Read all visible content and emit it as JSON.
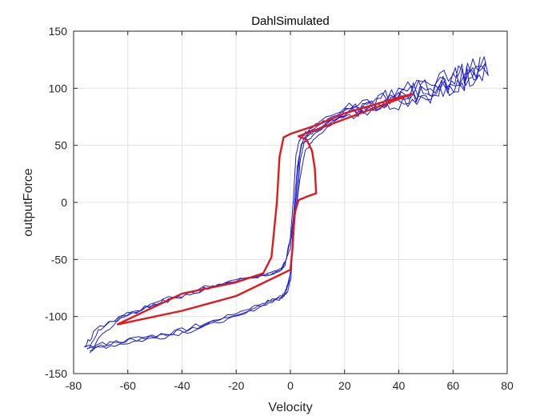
{
  "chart_data": {
    "type": "line",
    "title": "DahlSimulated",
    "xlabel": "Velocity",
    "ylabel": "outputForce",
    "xlim": [
      -80,
      80
    ],
    "ylim": [
      -150,
      150
    ],
    "xticks": [
      -80,
      -60,
      -40,
      -20,
      0,
      20,
      40,
      60,
      80
    ],
    "yticks": [
      -150,
      -100,
      -50,
      0,
      50,
      100,
      150
    ],
    "grid": true,
    "legend": "none",
    "colors": {
      "measured": "#1f1fd0",
      "simulated": "#e0191c"
    },
    "series": [
      {
        "color": "#1f1fd0",
        "noisy": true,
        "x": [
          -75,
          -70,
          -60,
          -50,
          -40,
          -30,
          -20,
          -10,
          -5,
          -3,
          -1.5,
          0,
          0.5,
          1,
          1.5,
          2,
          2.5,
          4,
          6,
          10,
          20,
          30,
          40,
          50,
          60,
          65,
          72,
          65,
          60,
          50,
          40,
          30,
          20,
          10,
          6,
          4,
          3,
          2,
          1.5,
          1,
          0,
          -2,
          -4,
          -6,
          -10,
          -20,
          -30,
          -40,
          -50,
          -60,
          -70,
          -75
        ],
        "y": [
          -128,
          -125,
          -121,
          -117,
          -112,
          -105,
          -97,
          -88,
          -84,
          -81,
          -76,
          -62,
          -45,
          -20,
          0,
          15,
          30,
          50,
          57,
          64,
          76,
          83,
          89,
          95,
          104,
          110,
          120,
          114,
          108,
          102,
          95,
          88,
          82,
          70,
          62,
          57,
          52,
          40,
          20,
          0,
          -30,
          -55,
          -60,
          -62,
          -64,
          -68,
          -74,
          -80,
          -88,
          -98,
          -110,
          -128
        ]
      },
      {
        "color": "#1f1fd0",
        "noisy": true,
        "x": [
          -74,
          -68,
          -58,
          -48,
          -38,
          -28,
          -18,
          -9,
          -4,
          -2,
          -0.5,
          0.5,
          1.2,
          2,
          3,
          3.5,
          5,
          8,
          15,
          25,
          35,
          45,
          55,
          63,
          70,
          62,
          52,
          42,
          32,
          22,
          12,
          7,
          5,
          4,
          3,
          2.5,
          1.5,
          0,
          -3,
          -5,
          -8,
          -15,
          -25,
          -35,
          -45,
          -55,
          -65,
          -74
        ],
        "y": [
          -130,
          -126,
          -122,
          -118,
          -113,
          -106,
          -99,
          -89,
          -85,
          -80,
          -70,
          -50,
          -25,
          -5,
          15,
          35,
          52,
          58,
          72,
          80,
          87,
          94,
          100,
          108,
          116,
          106,
          100,
          94,
          87,
          80,
          68,
          60,
          56,
          50,
          35,
          15,
          -10,
          -40,
          -58,
          -61,
          -63,
          -66,
          -72,
          -78,
          -86,
          -95,
          -105,
          -130
        ]
      },
      {
        "color": "#1f1fd0",
        "noisy": true,
        "x": [
          -76,
          -66,
          -56,
          -46,
          -36,
          -26,
          -16,
          -8,
          -3,
          -1,
          0.2,
          0.8,
          1.8,
          2.8,
          4,
          5.5,
          9,
          18,
          28,
          38,
          48,
          58,
          66,
          73,
          64,
          54,
          44,
          34,
          24,
          14,
          8,
          5.5,
          4.5,
          3.5,
          2.8,
          2,
          0.5,
          -1.5,
          -4,
          -7,
          -12,
          -22,
          -32,
          -42,
          -52,
          -62,
          -72,
          -76
        ],
        "y": [
          -127,
          -123,
          -119,
          -115,
          -110,
          -103,
          -95,
          -87,
          -83,
          -78,
          -66,
          -40,
          -12,
          8,
          28,
          45,
          56,
          74,
          82,
          90,
          97,
          106,
          113,
          123,
          110,
          103,
          96,
          89,
          82,
          74,
          64,
          58,
          53,
          44,
          25,
          5,
          -25,
          -50,
          -59,
          -62,
          -65,
          -70,
          -76,
          -83,
          -91,
          -101,
          -112,
          -127
        ]
      },
      {
        "color": "#e0191c",
        "noisy": false,
        "x": [
          -64,
          -40,
          -20,
          0,
          0.8,
          1.5,
          3,
          6,
          9.5,
          9,
          8,
          6,
          3,
          45,
          40,
          30,
          20,
          10,
          0,
          -2.5,
          -4,
          -5,
          -7,
          -10,
          -20,
          -40,
          -64
        ],
        "y": [
          -107,
          -95,
          -82,
          -59,
          -40,
          -10,
          2,
          5,
          8,
          30,
          45,
          55,
          58,
          95,
          92,
          85,
          78,
          68,
          60,
          57,
          40,
          0,
          -48,
          -62,
          -70,
          -80,
          -107
        ]
      }
    ]
  }
}
